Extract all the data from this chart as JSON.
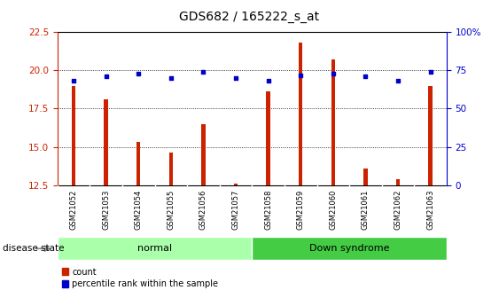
{
  "title": "GDS682 / 165222_s_at",
  "samples": [
    "GSM21052",
    "GSM21053",
    "GSM21054",
    "GSM21055",
    "GSM21056",
    "GSM21057",
    "GSM21058",
    "GSM21059",
    "GSM21060",
    "GSM21061",
    "GSM21062",
    "GSM21063"
  ],
  "count_values": [
    19.0,
    18.1,
    15.3,
    14.6,
    16.5,
    12.6,
    18.6,
    21.8,
    20.7,
    13.6,
    12.9,
    19.0
  ],
  "percentile_values": [
    68,
    71,
    73,
    70,
    74,
    70,
    68,
    72,
    73,
    71,
    68,
    74
  ],
  "ylim_left": [
    12.5,
    22.5
  ],
  "ylim_right": [
    0,
    100
  ],
  "yticks_left": [
    12.5,
    15.0,
    17.5,
    20.0,
    22.5
  ],
  "yticks_right": [
    0,
    25,
    50,
    75,
    100
  ],
  "bar_color": "#cc2200",
  "dot_color": "#0000cc",
  "normal_label": "normal",
  "down_syndrome_label": "Down syndrome",
  "disease_state_label": "disease state",
  "legend_count": "count",
  "legend_percentile": "percentile rank within the sample",
  "normal_color": "#aaffaa",
  "down_syndrome_color": "#44cc44",
  "label_area_color": "#cccccc",
  "title_fontsize": 10,
  "tick_fontsize": 7.5,
  "bar_width": 0.12,
  "figsize": [
    5.63,
    3.45
  ],
  "dpi": 100
}
